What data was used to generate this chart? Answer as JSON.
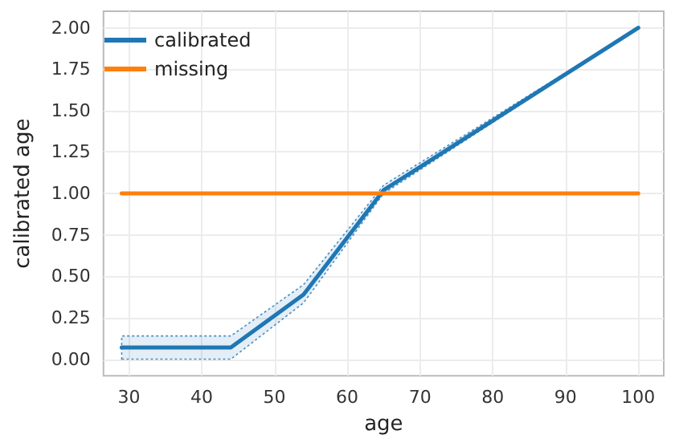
{
  "chart_data": {
    "type": "line",
    "xlabel": "age",
    "ylabel": "calibrated age",
    "xlim": [
      26.5,
      103.5
    ],
    "xticks": [
      30,
      40,
      50,
      60,
      70,
      80,
      90,
      100
    ],
    "ylim": [
      -0.1,
      2.1
    ],
    "yticks": [
      {
        "value": 0,
        "label": "0.00"
      },
      {
        "value": 0.25,
        "label": "0.25"
      },
      {
        "value": 0.5,
        "label": "0.50"
      },
      {
        "value": 0.75,
        "label": "0.75"
      },
      {
        "value": 1,
        "label": "1.00"
      },
      {
        "value": 1.25,
        "label": "1.25"
      },
      {
        "value": 1.5,
        "label": "1.50"
      },
      {
        "value": 1.75,
        "label": "1.75"
      },
      {
        "value": 2,
        "label": "2.00"
      }
    ],
    "grid": true,
    "legend": "top left",
    "marker": "none",
    "line_style": "solid",
    "series": [
      {
        "name": "calibrated",
        "color": "#1f77b4",
        "x": [
          29,
          44,
          54,
          65,
          100
        ],
        "values": [
          0.07,
          0.07,
          0.39,
          1.02,
          2.0
        ],
        "lower": [
          0.0,
          0.0,
          0.34,
          1.0,
          2.0
        ],
        "upper": [
          0.14,
          0.14,
          0.45,
          1.05,
          2.0
        ]
      },
      {
        "name": "missing",
        "color": "#ff7f0e",
        "x": [
          29,
          100
        ],
        "values": [
          1,
          1
        ]
      }
    ]
  }
}
